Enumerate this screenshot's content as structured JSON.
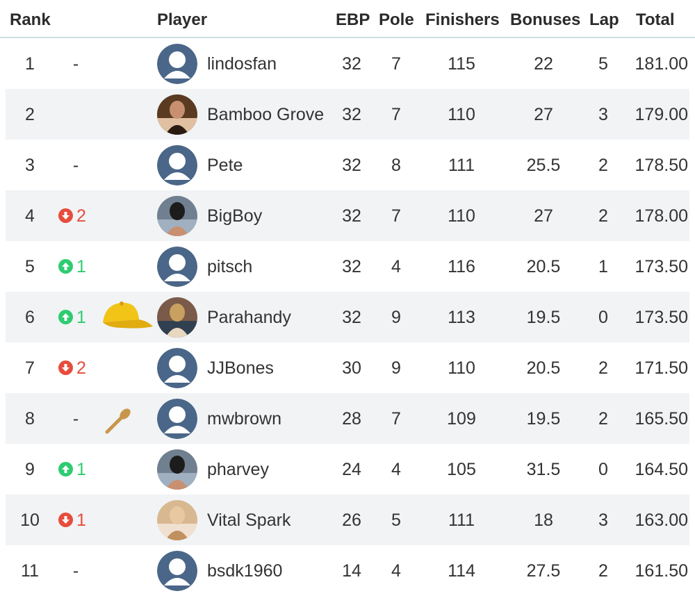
{
  "columns": {
    "rank": "Rank",
    "player": "Player",
    "ebp": "EBP",
    "pole": "Pole",
    "finishers": "Finishers",
    "bonuses": "Bonuses",
    "lap": "Lap",
    "total": "Total"
  },
  "colors": {
    "up": "#2ecc71",
    "down": "#e74c3c",
    "row_alt": "#f1f3f5",
    "avatar_default": "#4a6688"
  },
  "rows": [
    {
      "rank": "1",
      "move_dir": "none",
      "move_text": "-",
      "award": "",
      "avatar": "default-avatar-icon",
      "player": "lindosfan",
      "ebp": "32",
      "pole": "7",
      "finishers": "115",
      "bonuses": "22",
      "lap": "5",
      "total": "181.00"
    },
    {
      "rank": "2",
      "move_dir": "blank",
      "move_text": "",
      "award": "",
      "avatar": "photo-avatar-icon",
      "player": "Bamboo Grove",
      "ebp": "32",
      "pole": "7",
      "finishers": "110",
      "bonuses": "27",
      "lap": "3",
      "total": "179.00"
    },
    {
      "rank": "3",
      "move_dir": "none",
      "move_text": "-",
      "award": "",
      "avatar": "default-avatar-icon",
      "player": "Pete",
      "ebp": "32",
      "pole": "8",
      "finishers": "111",
      "bonuses": "25.5",
      "lap": "2",
      "total": "178.50"
    },
    {
      "rank": "4",
      "move_dir": "down",
      "move_text": "2",
      "award": "",
      "avatar": "photo-avatar-icon",
      "player": "BigBoy",
      "ebp": "32",
      "pole": "7",
      "finishers": "110",
      "bonuses": "27",
      "lap": "2",
      "total": "178.00"
    },
    {
      "rank": "5",
      "move_dir": "up",
      "move_text": "1",
      "award": "",
      "avatar": "default-avatar-icon",
      "player": "pitsch",
      "ebp": "32",
      "pole": "4",
      "finishers": "116",
      "bonuses": "20.5",
      "lap": "1",
      "total": "173.50"
    },
    {
      "rank": "6",
      "move_dir": "up",
      "move_text": "1",
      "award": "yellow-cap-icon",
      "avatar": "photo-avatar-icon",
      "player": "Parahandy",
      "ebp": "32",
      "pole": "9",
      "finishers": "113",
      "bonuses": "19.5",
      "lap": "0",
      "total": "173.50"
    },
    {
      "rank": "7",
      "move_dir": "down",
      "move_text": "2",
      "award": "",
      "avatar": "default-avatar-icon",
      "player": "JJBones",
      "ebp": "30",
      "pole": "9",
      "finishers": "110",
      "bonuses": "20.5",
      "lap": "2",
      "total": "171.50"
    },
    {
      "rank": "8",
      "move_dir": "none",
      "move_text": "-",
      "award": "wooden-spoon-icon",
      "avatar": "default-avatar-icon",
      "player": "mwbrown",
      "ebp": "28",
      "pole": "7",
      "finishers": "109",
      "bonuses": "19.5",
      "lap": "2",
      "total": "165.50"
    },
    {
      "rank": "9",
      "move_dir": "up",
      "move_text": "1",
      "award": "",
      "avatar": "photo-avatar-icon",
      "player": "pharvey",
      "ebp": "24",
      "pole": "4",
      "finishers": "105",
      "bonuses": "31.5",
      "lap": "0",
      "total": "164.50"
    },
    {
      "rank": "10",
      "move_dir": "down",
      "move_text": "1",
      "award": "",
      "avatar": "photo-avatar-icon",
      "player": "Vital Spark",
      "ebp": "26",
      "pole": "5",
      "finishers": "111",
      "bonuses": "18",
      "lap": "3",
      "total": "163.00"
    },
    {
      "rank": "11",
      "move_dir": "none",
      "move_text": "-",
      "award": "",
      "avatar": "default-avatar-icon",
      "player": "bsdk1960",
      "ebp": "14",
      "pole": "4",
      "finishers": "114",
      "bonuses": "27.5",
      "lap": "2",
      "total": "161.50"
    }
  ]
}
